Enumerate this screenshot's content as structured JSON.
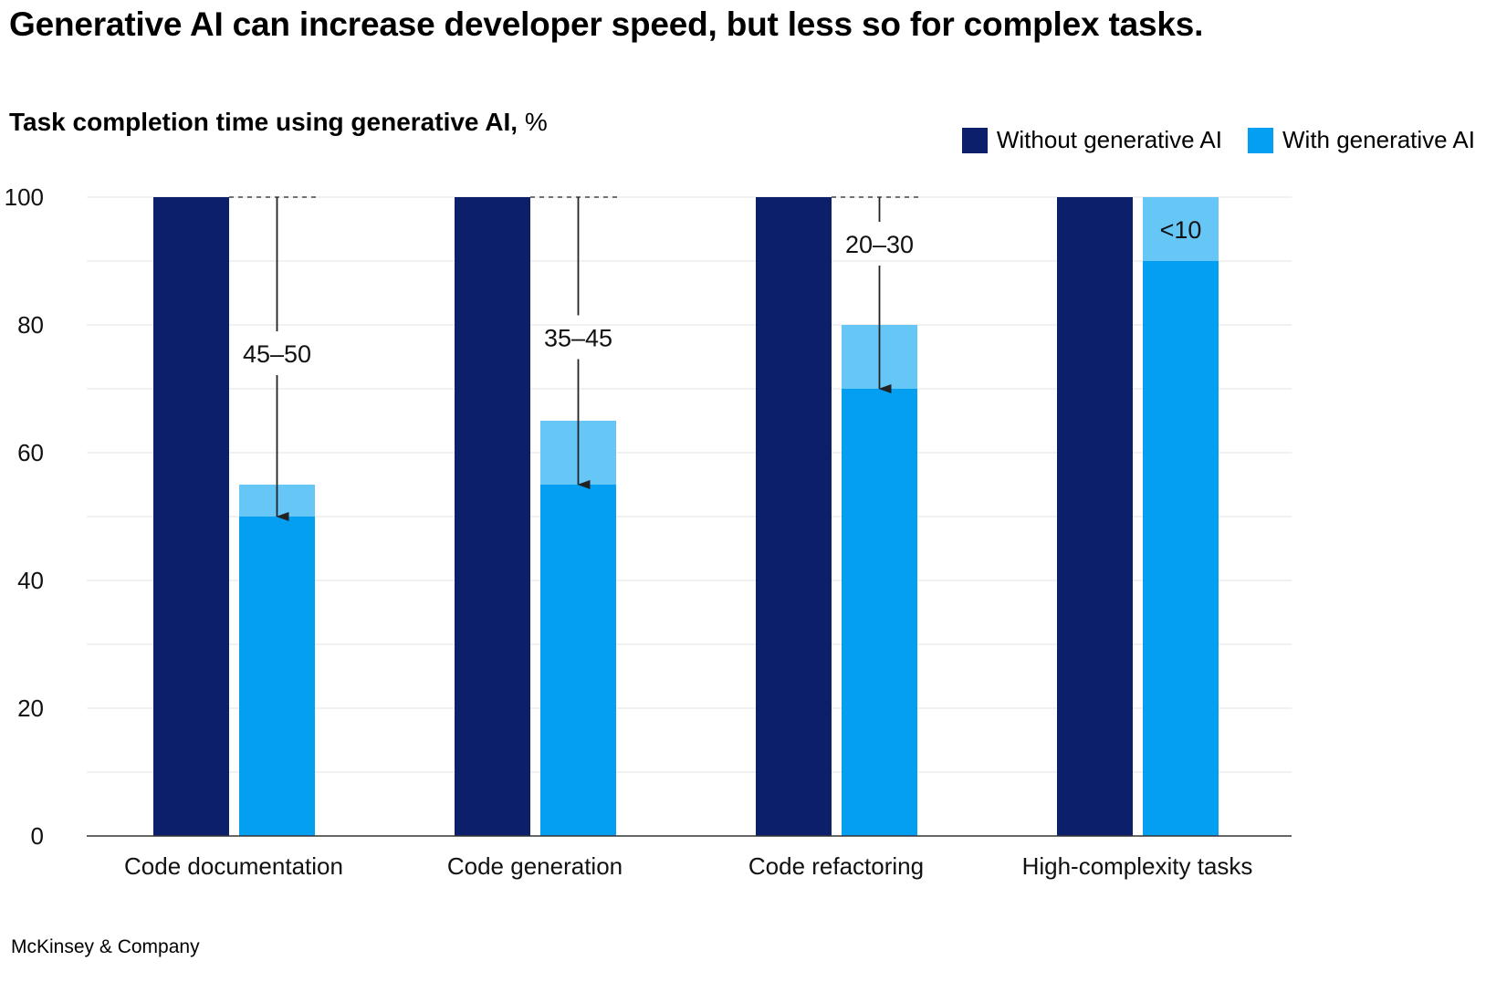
{
  "headline": "Generative AI can increase developer speed, but less so for complex tasks.",
  "subtitle": {
    "bold": "Task completion time using generative AI,",
    "unit": "%"
  },
  "footer": "McKinsey & Company",
  "colors": {
    "without": "#0b1f6b",
    "with": "#049ff0",
    "with_range": "#66c7f7",
    "grid": "#e3e3e3",
    "axis": "#333333"
  },
  "chart_data": {
    "type": "bar",
    "categories": [
      "Code documentation",
      "Code generation",
      "Code refactoring",
      "High-complexity tasks"
    ],
    "series": [
      {
        "name": "Without generative AI",
        "values": [
          100,
          100,
          100,
          100
        ]
      },
      {
        "name": "With generative AI",
        "values_low": [
          50,
          55,
          70,
          90
        ],
        "values_high": [
          55,
          65,
          80,
          100
        ]
      }
    ],
    "reduction_labels": [
      "45–50",
      "35–45",
      "20–30",
      "<10"
    ],
    "ylim": [
      0,
      100
    ],
    "yticks": [
      0,
      20,
      40,
      60,
      80,
      100
    ],
    "minor_gridlines_every": 10,
    "legend_position": "top-right"
  }
}
